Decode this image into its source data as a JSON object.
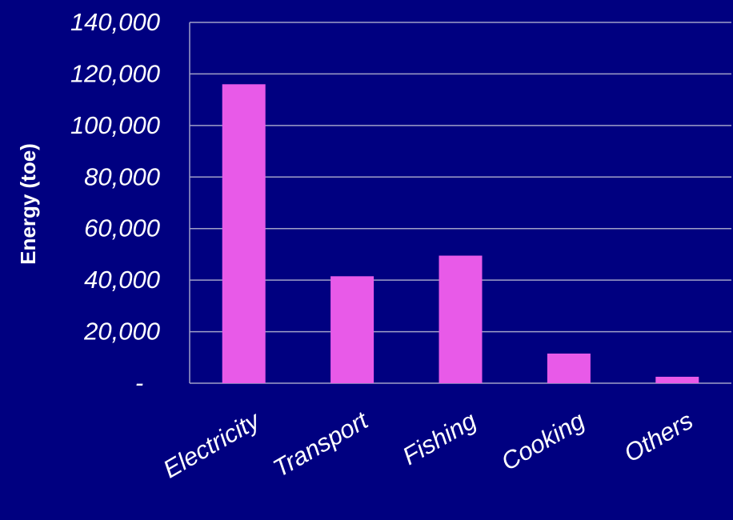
{
  "chart_data": {
    "type": "bar",
    "title": "",
    "xlabel": "",
    "ylabel": "Energy (toe)",
    "categories": [
      "Electricity",
      "Transport",
      "Fishing",
      "Cooking",
      "Others"
    ],
    "values": [
      116000,
      41500,
      49500,
      11500,
      2500
    ],
    "ylim": [
      0,
      140000
    ],
    "yticks": [
      0,
      20000,
      40000,
      60000,
      80000,
      100000,
      120000,
      140000
    ],
    "ytick_labels": [
      "-",
      "20,000",
      "40,000",
      "60,000",
      "80,000",
      "100,000",
      "120,000",
      "140,000"
    ],
    "grid": true,
    "colors": {
      "background": "#000080",
      "bar": "#e85ae8",
      "grid": "#a0a0c8",
      "text": "#ffffff"
    }
  }
}
